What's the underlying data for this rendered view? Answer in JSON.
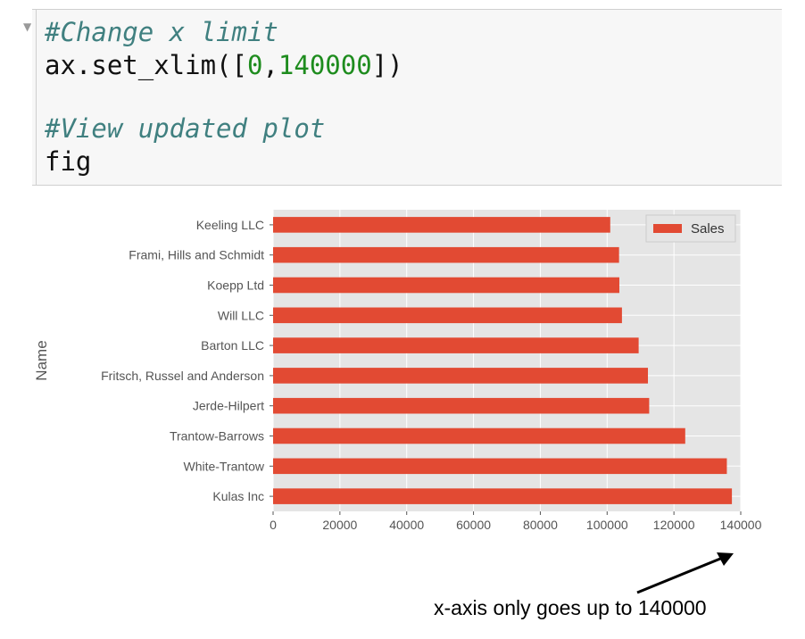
{
  "code": {
    "lines": [
      {
        "comment": "#Change x limit"
      },
      {
        "prefix": "ax.set_xlim([",
        "n1": "0",
        "sep": ",",
        "n2": "140000",
        "suffix": "])"
      },
      {
        "comment": "#View updated plot"
      },
      {
        "text": "fig"
      }
    ]
  },
  "chart_data": {
    "type": "bar",
    "orientation": "horizontal",
    "categories": [
      "Keeling LLC",
      "Frami, Hills and Schmidt",
      "Koepp Ltd",
      "Will LLC",
      "Barton LLC",
      "Fritsch, Russel and Anderson",
      "Jerde-Hilpert",
      "Trantow-Barrows",
      "White-Trantow",
      "Kulas Inc"
    ],
    "series": [
      {
        "name": "Sales",
        "values": [
          100934,
          103569,
          103660,
          104437,
          109438,
          112214,
          112591,
          123381,
          135841,
          137352
        ]
      }
    ],
    "xticks": [
      "0",
      "20000",
      "40000",
      "60000",
      "80000",
      "100000",
      "120000",
      "140000"
    ],
    "xlim": [
      0,
      140000
    ],
    "ylabel": "Name",
    "xlabel": "",
    "grid": true,
    "legend": "top-right",
    "style": "ggplot",
    "bar_color": "#E24A33",
    "background_color": "#E5E5E5",
    "grid_color": "#FFFFFF"
  },
  "annotation": {
    "text": "x-axis only goes up to 140000",
    "arrow": "arrow-icon"
  }
}
